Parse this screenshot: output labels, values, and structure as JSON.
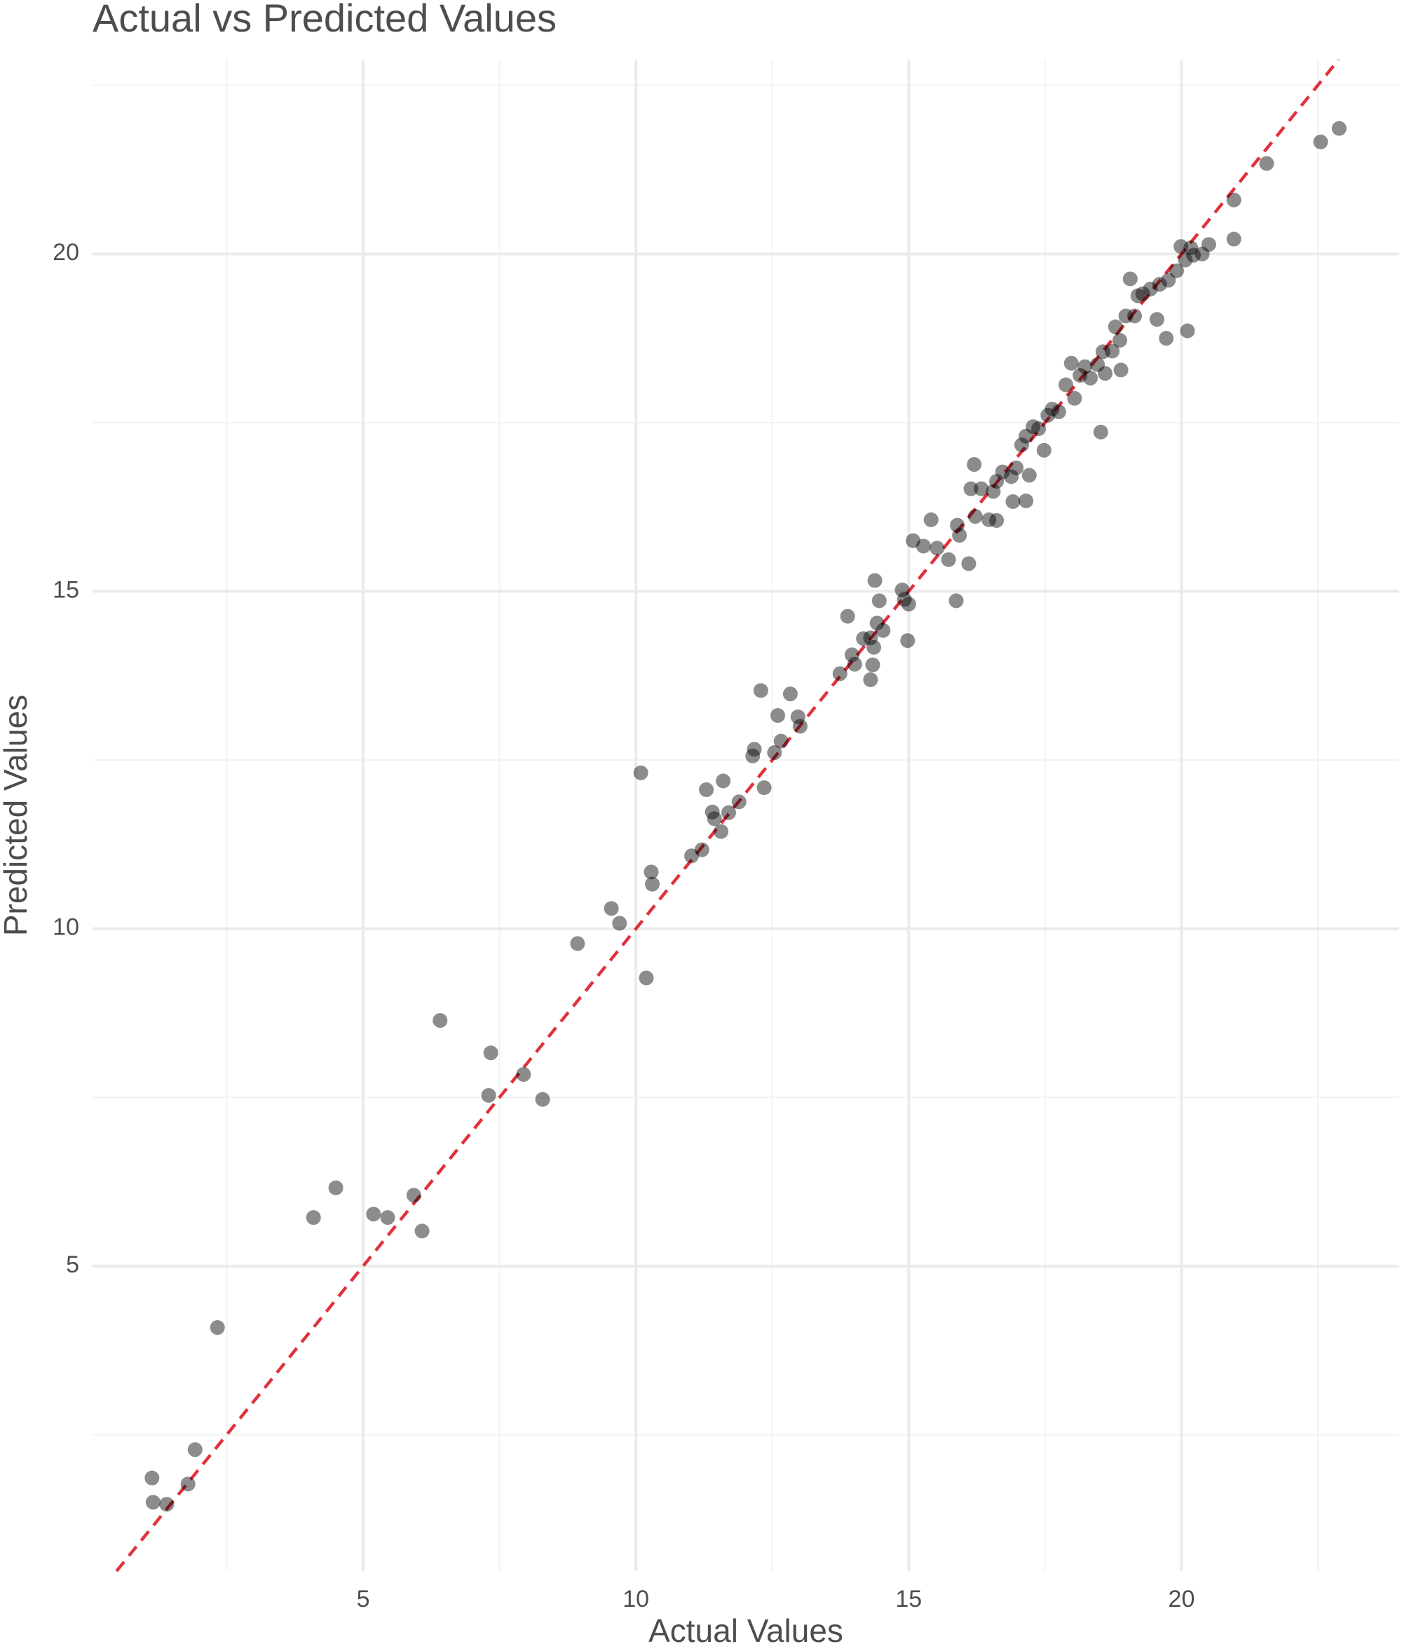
{
  "chart_data": {
    "type": "scatter",
    "title": "Actual vs Predicted Values",
    "x_label": "Actual Values",
    "y_label": "Predicted Values",
    "xlim": [
      0.04,
      23.99
    ],
    "ylim": [
      0.48,
      22.88
    ],
    "xticks": [
      5,
      10,
      15,
      20
    ],
    "yticks": [
      5,
      10,
      15,
      20
    ],
    "x_minor_grid": [
      2.5,
      7.5,
      12.5,
      17.5,
      22.5
    ],
    "y_minor_grid": [
      2.5,
      7.5,
      12.5,
      17.5,
      22.5
    ],
    "grid": true,
    "reference_line": {
      "slope": 1,
      "intercept": 0,
      "color": "#e0323c"
    },
    "series": [
      {
        "color": "#000000",
        "x": [
          1.13,
          1.15,
          1.4,
          1.79,
          1.92,
          2.33,
          4.09,
          4.5,
          5.19,
          5.45,
          5.93,
          6.08,
          6.41,
          7.3,
          7.34,
          7.94,
          8.29,
          8.93,
          9.55,
          9.7,
          10.09,
          10.19,
          10.28,
          10.3,
          11.02,
          11.21,
          11.29,
          11.4,
          11.44,
          11.56,
          11.6,
          11.7,
          11.89,
          12.14,
          12.17,
          12.29,
          12.35,
          12.54,
          12.6,
          12.66,
          12.83,
          12.97,
          13.01,
          13.74,
          13.88,
          13.96,
          14.01,
          14.17,
          14.3,
          14.34,
          14.36,
          14.3,
          14.38,
          14.46,
          14.42,
          14.53,
          14.88,
          14.92,
          15.0,
          14.98,
          15.08,
          15.27,
          15.41,
          15.52,
          15.73,
          15.87,
          15.89,
          15.93,
          16.1,
          16.14,
          16.2,
          16.22,
          16.33,
          16.47,
          16.55,
          16.61,
          16.61,
          16.72,
          16.88,
          16.91,
          16.97,
          17.07,
          17.15,
          17.21,
          17.15,
          17.28,
          17.38,
          17.48,
          17.55,
          17.63,
          17.75,
          17.88,
          17.98,
          18.04,
          18.14,
          18.23,
          18.33,
          18.46,
          18.52,
          18.56,
          18.6,
          18.73,
          18.79,
          18.87,
          18.89,
          18.98,
          19.06,
          19.14,
          19.2,
          19.29,
          19.43,
          19.55,
          19.6,
          19.72,
          19.76,
          19.91,
          19.99,
          20.07,
          20.11,
          20.17,
          20.22,
          20.38,
          20.5,
          20.96,
          20.96,
          21.56,
          22.55,
          22.89
        ],
        "values": [
          1.86,
          1.5,
          1.47,
          1.77,
          2.28,
          4.09,
          5.72,
          6.16,
          5.77,
          5.72,
          6.05,
          5.52,
          8.64,
          7.53,
          8.16,
          7.84,
          7.47,
          9.78,
          10.3,
          10.08,
          12.31,
          9.27,
          10.84,
          10.66,
          11.08,
          11.17,
          12.06,
          11.73,
          11.63,
          11.44,
          12.19,
          11.72,
          11.88,
          12.56,
          12.66,
          13.53,
          12.09,
          12.61,
          13.16,
          12.78,
          13.48,
          13.14,
          13.0,
          13.78,
          14.63,
          14.06,
          13.92,
          14.3,
          14.31,
          13.91,
          14.17,
          13.69,
          15.16,
          14.86,
          14.53,
          14.42,
          15.02,
          14.88,
          14.81,
          14.27,
          15.75,
          15.67,
          16.06,
          15.64,
          15.47,
          14.86,
          15.98,
          15.83,
          15.41,
          16.52,
          16.88,
          16.11,
          16.52,
          16.06,
          16.48,
          16.63,
          16.05,
          16.77,
          16.7,
          16.33,
          16.83,
          17.17,
          16.34,
          16.72,
          17.3,
          17.44,
          17.41,
          17.09,
          17.61,
          17.7,
          17.66,
          18.06,
          18.38,
          17.86,
          18.2,
          18.33,
          18.16,
          18.36,
          17.36,
          18.55,
          18.23,
          18.56,
          18.92,
          18.72,
          18.28,
          19.08,
          19.63,
          19.08,
          19.38,
          19.41,
          19.48,
          19.03,
          19.55,
          18.75,
          19.61,
          19.75,
          20.11,
          19.91,
          18.86,
          20.09,
          19.98,
          20.0,
          20.14,
          20.22,
          20.8,
          21.34,
          21.66,
          21.86
        ]
      }
    ]
  }
}
